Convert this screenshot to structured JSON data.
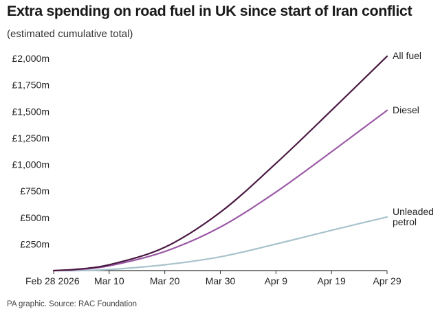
{
  "chart_data": {
    "type": "line",
    "title": "Extra spending on road fuel in UK since start of Iran conflict",
    "subtitle": "(estimated cumulative total)",
    "source": "PA graphic. Source: RAC Foundation",
    "x_day_labels": [
      "Feb 28 2026",
      "Mar 10",
      "Mar 20",
      "Mar 30",
      "Apr 9",
      "Apr 19",
      "Apr 29"
    ],
    "y_ticks": [
      250,
      500,
      750,
      1000,
      1250,
      1500,
      1750,
      2000
    ],
    "y_tick_labels": [
      "£250m",
      "£500m",
      "£750m",
      "£1,000m",
      "£1,250m",
      "£1,500m",
      "£1,750m",
      "£2,000m"
    ],
    "ylim": [
      0,
      2000
    ],
    "unit": "£m",
    "grid": false,
    "x": [
      "Feb 28 2026",
      "Mar 2",
      "Mar 4",
      "Mar 10",
      "Mar 20",
      "Mar 30",
      "Apr 9",
      "Apr 19",
      "Apr 29"
    ],
    "series": [
      {
        "name": "All fuel",
        "color": "#4a1942",
        "values": [
          0,
          5,
          12,
          55,
          220,
          550,
          1010,
          1510,
          2020
        ]
      },
      {
        "name": "Diesel",
        "color": "#9b59a6",
        "values": [
          0,
          4,
          9,
          45,
          180,
          410,
          740,
          1120,
          1510
        ]
      },
      {
        "name": "Unleaded petrol",
        "color": "#a8c3cc",
        "values": [
          0,
          0,
          0,
          10,
          55,
          130,
          250,
          380,
          505
        ]
      }
    ]
  }
}
